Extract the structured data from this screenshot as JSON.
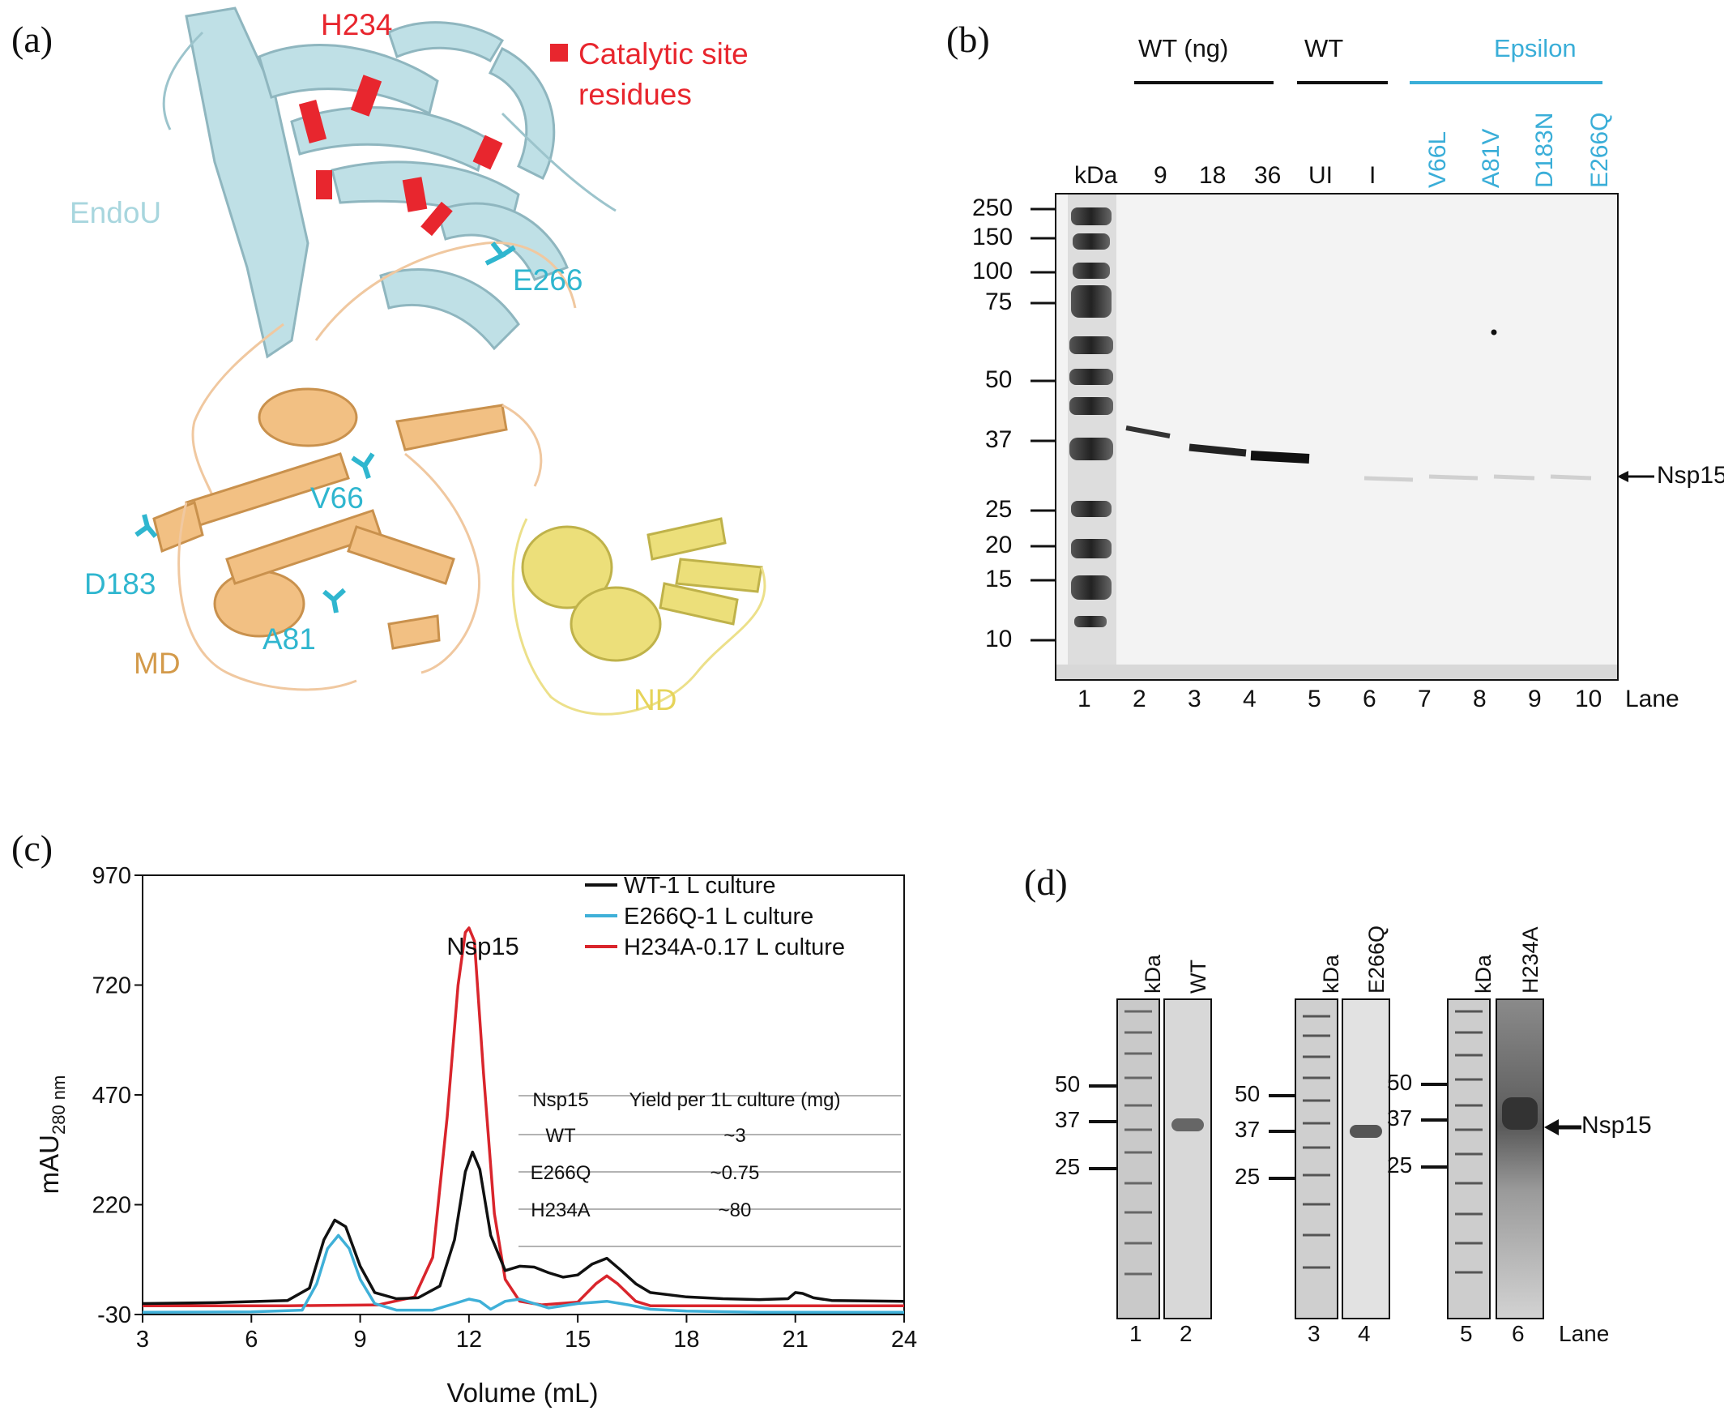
{
  "panels": {
    "a": {
      "letter": "(a)",
      "labels": {
        "h234": "H234",
        "catalytic_line1": "Catalytic site",
        "catalytic_line2": "residues",
        "endou": "EndoU",
        "e266": "E266",
        "v66": "V66",
        "d183": "D183",
        "a81": "A81",
        "md": "MD",
        "nd": "ND"
      },
      "colors": {
        "endou": "#bfe0e6",
        "md": "#f2c083",
        "nd": "#ecdf7a",
        "catalytic": "#e8262e",
        "mutation": "#2fb6cf"
      }
    },
    "b": {
      "letter": "(b)",
      "group_wt_ng": "WT (ng)",
      "group_wt": "WT",
      "group_epsilon": "Epsilon",
      "lane_headers": [
        "kDa",
        "9",
        "18",
        "36",
        "UI",
        "I"
      ],
      "epsilon_lanes": [
        "V66L",
        "A81V",
        "D183N",
        "E266Q"
      ],
      "markers": [
        "250",
        "150",
        "100",
        "75",
        "50",
        "37",
        "25",
        "20",
        "15",
        "10"
      ],
      "lane_numbers": [
        "1",
        "2",
        "3",
        "4",
        "5",
        "6",
        "7",
        "8",
        "9",
        "10"
      ],
      "lane_word": "Lane",
      "band_label": "Nsp15"
    },
    "c": {
      "letter": "(c)",
      "peak_label": "Nsp15",
      "table": {
        "headers": [
          "Nsp15",
          "Yield per 1L culture (mg)"
        ],
        "rows": [
          [
            "WT",
            "~3"
          ],
          [
            "E266Q",
            "~0.75"
          ],
          [
            "H234A",
            "~80"
          ]
        ]
      }
    },
    "d": {
      "letter": "(d)",
      "gels": [
        {
          "ladder": "kDa",
          "sample": "WT",
          "markers": [
            "50",
            "37",
            "25"
          ],
          "lanes": [
            "1",
            "2"
          ]
        },
        {
          "ladder": "kDa",
          "sample": "E266Q",
          "markers": [
            "50",
            "37",
            "25"
          ],
          "lanes": [
            "3",
            "4"
          ]
        },
        {
          "ladder": "kDa",
          "sample": "H234A",
          "markers": [
            "50",
            "37",
            "25"
          ],
          "lanes": [
            "5",
            "6"
          ]
        }
      ],
      "lane_word": "Lane",
      "band_label": "Nsp15"
    }
  },
  "chart_data": {
    "type": "line",
    "xlabel": "Volume (mL)",
    "ylabel_main": "mAU",
    "ylabel_sub": "280 nm",
    "xlim": [
      3,
      24
    ],
    "ylim": [
      -30,
      970
    ],
    "xticks": [
      3,
      6,
      9,
      12,
      15,
      18,
      21,
      24
    ],
    "yticks": [
      -30,
      220,
      470,
      720,
      970
    ],
    "legend_position": "top-right",
    "series": [
      {
        "name": "WT-1 L culture",
        "color": "#111111",
        "x": [
          3,
          5,
          7,
          7.6,
          8.0,
          8.3,
          8.6,
          9.0,
          9.4,
          10.0,
          10.6,
          11.2,
          11.6,
          11.9,
          12.1,
          12.3,
          12.6,
          13.0,
          13.4,
          13.8,
          14.2,
          14.6,
          15.0,
          15.4,
          15.8,
          16.2,
          16.6,
          17.0,
          18.0,
          19.0,
          20.0,
          20.8,
          21.0,
          21.2,
          21.5,
          22.0,
          24.0
        ],
        "values": [
          -5,
          -3,
          2,
          30,
          140,
          185,
          170,
          80,
          20,
          6,
          8,
          35,
          140,
          295,
          340,
          300,
          150,
          70,
          80,
          78,
          65,
          55,
          60,
          85,
          98,
          70,
          40,
          20,
          10,
          6,
          4,
          6,
          20,
          18,
          8,
          2,
          0
        ]
      },
      {
        "name": "E266Q-1 L culture",
        "color": "#3fb0d8",
        "x": [
          3,
          6,
          7.4,
          7.8,
          8.1,
          8.4,
          8.7,
          9.0,
          9.4,
          10.0,
          11.0,
          11.6,
          12.0,
          12.3,
          12.6,
          13.0,
          13.4,
          13.8,
          14.2,
          15.0,
          15.8,
          16.4,
          17.0,
          18.0,
          20.0,
          24.0
        ],
        "values": [
          -25,
          -24,
          -20,
          40,
          120,
          150,
          120,
          50,
          -5,
          -20,
          -20,
          -5,
          5,
          0,
          -18,
          0,
          5,
          -5,
          -15,
          -5,
          0,
          -8,
          -18,
          -22,
          -25,
          -25
        ]
      },
      {
        "name": "H234A-0.17 L culture",
        "color": "#d9252c",
        "x": [
          3,
          7,
          9.5,
          10.5,
          11.0,
          11.4,
          11.7,
          11.9,
          12.0,
          12.15,
          12.4,
          12.7,
          13.0,
          13.4,
          14.0,
          15.0,
          15.5,
          15.8,
          16.1,
          16.6,
          17.0,
          18.0,
          24.0
        ],
        "values": [
          -10,
          -10,
          -8,
          10,
          100,
          420,
          720,
          840,
          850,
          820,
          520,
          200,
          50,
          0,
          -8,
          -2,
          40,
          58,
          40,
          0,
          -10,
          -10,
          -10
        ]
      }
    ]
  }
}
